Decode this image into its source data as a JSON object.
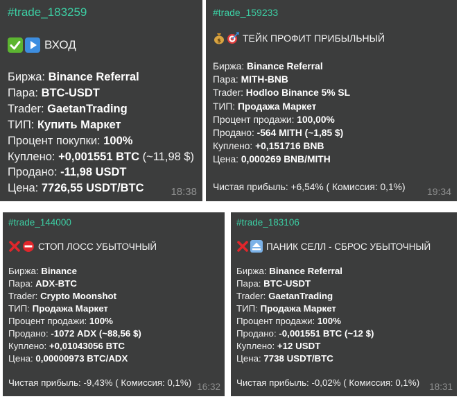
{
  "cards": [
    {
      "tag": "#trade_183259",
      "title": "ВХОД",
      "icons": [
        "check-mark-icon",
        "play-icon"
      ],
      "rows": [
        {
          "label": "Биржа: ",
          "value": "Binance Referral"
        },
        {
          "label": "Пара: ",
          "value": "BTC-USDT"
        },
        {
          "label": "Trader: ",
          "value": "GaetanTrading"
        },
        {
          "label": "ТИП: ",
          "value": "Купить Маркет"
        },
        {
          "label": "Процент покупки: ",
          "value": "100%"
        },
        {
          "label": "Куплено: ",
          "value": "+0,001551 BTC",
          "extra": " (~11,98 $)"
        },
        {
          "label": "Продано: ",
          "value": "-11,98 USDT"
        },
        {
          "label": "Цена: ",
          "value": "7726,55 USDT/BTC"
        }
      ],
      "time": "18:38"
    },
    {
      "tag": "#trade_159233",
      "title": "ТЕЙК ПРОФИТ ПРИБЫЛЬНЫЙ",
      "icons": [
        "money-bag-icon",
        "target-icon"
      ],
      "rows": [
        {
          "label": "Биржа: ",
          "value": "Binance Referral"
        },
        {
          "label": "Пара: ",
          "value": "MITH-BNB"
        },
        {
          "label": "Trader: ",
          "value": "Hodloo Binance 5% SL"
        },
        {
          "label": "ТИП: ",
          "value": "Продажа Маркет"
        },
        {
          "label": "Процент продажи: ",
          "value": "100,00%"
        },
        {
          "label": "Продано: ",
          "value": "-564 MITH (~1,85 $)"
        },
        {
          "label": "Куплено: ",
          "value": "+0,151716 BNB"
        },
        {
          "label": "Цена: ",
          "value": "0,000269 BNB/MITH"
        }
      ],
      "footer": "Чистая прибыль: +6,54% ( Комиссия: 0,1%)",
      "time": "19:34"
    },
    {
      "tag": "#trade_144000",
      "title": "СТОП ЛОСС УБЫТОЧНЫЙ",
      "icons": [
        "cross-mark-icon",
        "no-entry-icon"
      ],
      "rows": [
        {
          "label": "Биржа: ",
          "value": "Binance"
        },
        {
          "label": "Пара: ",
          "value": "ADX-BTC"
        },
        {
          "label": "Trader: ",
          "value": "Crypto Moonshot"
        },
        {
          "label": "ТИП: ",
          "value": "Продажа Маркет"
        },
        {
          "label": "Процент продажи: ",
          "value": "100%"
        },
        {
          "label": "Продано: ",
          "value": "-1072 ADX (~88,56 $)"
        },
        {
          "label": "Куплено: ",
          "value": "+0,01043056 BTC"
        },
        {
          "label": "Цена: ",
          "value": "0,00000973 BTC/ADX"
        }
      ],
      "footer": "Чистая прибыль: -9,43% ( Комиссия: 0,1%)",
      "time": "16:32"
    },
    {
      "tag": "#trade_183106",
      "title": "ПАНИК СЕЛЛ - СБРОС УБЫТОЧНЫЙ",
      "icons": [
        "cross-mark-icon",
        "eject-icon"
      ],
      "rows": [
        {
          "label": "Биржа: ",
          "value": "Binance Referral"
        },
        {
          "label": "Пара: ",
          "value": "BTC-USDT"
        },
        {
          "label": "Trader: ",
          "value": "GaetanTrading"
        },
        {
          "label": "ТИП: ",
          "value": "Продажа Маркет"
        },
        {
          "label": "Процент продажи: ",
          "value": "100%"
        },
        {
          "label": "Продано: ",
          "value": "-0,001551 BTC (~12 $)"
        },
        {
          "label": "Куплено: ",
          "value": "+12 USDT"
        },
        {
          "label": "Цена: ",
          "value": "7738 USDT/BTC"
        }
      ],
      "footer": "Чистая прибыль: -0,02% ( Комиссия: 0,1%)",
      "time": "18:31"
    }
  ],
  "colors": {
    "card_bg": "#3c3d3d",
    "hashtag": "#3ccfa4",
    "text": "#f2f2f2",
    "time": "#8f9090",
    "check_green": "#5cb531",
    "cross_red": "#e0262b",
    "button_blue": "#3d8ee0"
  }
}
